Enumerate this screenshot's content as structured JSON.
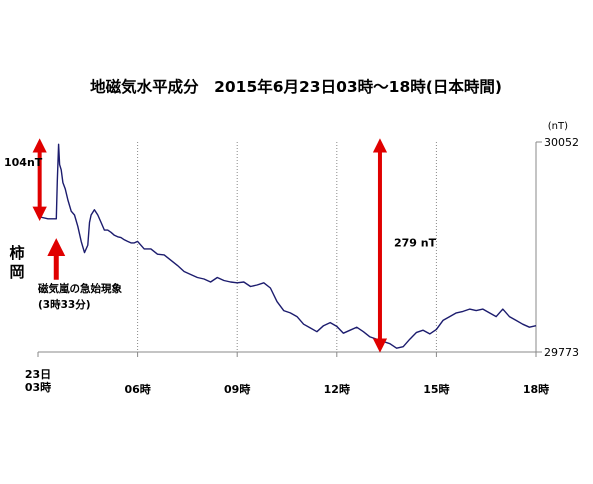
{
  "chart_data": {
    "type": "line",
    "title": "地磁気水平成分　2015年6月23日03時～18時(日本時間)",
    "station_label": "柿\n岡",
    "unit_label": "(nT)",
    "ylim": [
      29773,
      30052
    ],
    "y_tick_labels": [
      "30052",
      "29773"
    ],
    "xlim": [
      3.0,
      18.0
    ],
    "x_ticks": [
      3,
      6,
      9,
      12,
      15,
      18
    ],
    "x_tick_labels": [
      "23日\n03時",
      "06時",
      "09時",
      "12時",
      "15時",
      "18時"
    ],
    "grid": "vertical dotted lines at 06, 09, 12, 15 h",
    "series": [
      {
        "color": "#1c1c6e",
        "x": [
          3.0,
          3.3,
          3.55,
          3.58,
          3.62,
          3.65,
          3.7,
          3.75,
          3.82,
          3.9,
          4.0,
          4.1,
          4.2,
          4.3,
          4.4,
          4.5,
          4.55,
          4.6,
          4.7,
          4.8,
          4.9,
          5.0,
          5.1,
          5.2,
          5.3,
          5.4,
          5.5,
          5.6,
          5.7,
          5.8,
          5.9,
          6.0,
          6.2,
          6.4,
          6.6,
          6.8,
          7.0,
          7.2,
          7.4,
          7.6,
          7.8,
          8.0,
          8.2,
          8.4,
          8.6,
          8.8,
          9.0,
          9.2,
          9.4,
          9.6,
          9.8,
          10.0,
          10.2,
          10.4,
          10.6,
          10.8,
          11.0,
          11.2,
          11.4,
          11.6,
          11.8,
          12.0,
          12.2,
          12.4,
          12.6,
          12.8,
          13.0,
          13.2,
          13.4,
          13.6,
          13.8,
          14.0,
          14.2,
          14.4,
          14.6,
          14.8,
          15.0,
          15.2,
          15.4,
          15.6,
          15.8,
          16.0,
          16.2,
          16.4,
          16.6,
          16.8,
          17.0,
          17.2,
          17.4,
          17.6,
          17.8,
          18.0
        ],
        "values": [
          29953,
          29950,
          29950,
          30000,
          30049,
          30022,
          30015,
          29998,
          29990,
          29975,
          29960,
          29955,
          29940,
          29920,
          29905,
          29915,
          29945,
          29955,
          29962,
          29955,
          29945,
          29935,
          29935,
          29932,
          29928,
          29926,
          29925,
          29922,
          29920,
          29918,
          29918,
          29920,
          29910,
          29910,
          29903,
          29902,
          29895,
          29888,
          29880,
          29876,
          29872,
          29870,
          29866,
          29872,
          29868,
          29866,
          29865,
          29866,
          29860,
          29862,
          29865,
          29858,
          29840,
          29828,
          29825,
          29820,
          29810,
          29805,
          29800,
          29808,
          29812,
          29807,
          29798,
          29802,
          29806,
          29800,
          29793,
          29790,
          29787,
          29784,
          29778,
          29780,
          29790,
          29799,
          29802,
          29797,
          29803,
          29815,
          29820,
          29825,
          29827,
          29830,
          29828,
          29830,
          29825,
          29820,
          29830,
          29820,
          29815,
          29810,
          29806,
          29808
        ]
      }
    ],
    "annotations": [
      {
        "text": "104nT",
        "kind": "double-arrow",
        "x": 3.05,
        "y_range": [
          29950,
          30054
        ]
      },
      {
        "text": "279 nT",
        "kind": "double-arrow",
        "x": 13.3,
        "y_range": [
          29775,
          30054
        ]
      },
      {
        "text": "磁気嵐の急始現象\n(3時33分)",
        "kind": "up-arrow",
        "x": 3.55,
        "y_range": [
          29869,
          29919
        ]
      }
    ],
    "colors": {
      "line": "#1c1c6e",
      "arrow": "#e00000",
      "axis": "#888888",
      "grid": "#888888"
    }
  }
}
